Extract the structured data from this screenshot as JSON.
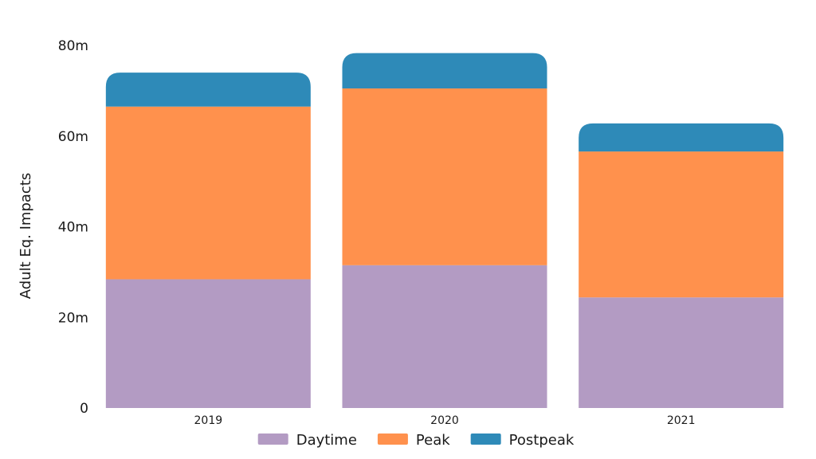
{
  "chart_data": {
    "type": "bar",
    "stacked": true,
    "categories": [
      "2019",
      "2020",
      "2021"
    ],
    "series": [
      {
        "name": "Daytime",
        "color": "#b39bc3",
        "values": [
          28.4,
          31.5,
          24.4
        ]
      },
      {
        "name": "Peak",
        "color": "#ff914d",
        "values": [
          38.1,
          39.0,
          32.2
        ]
      },
      {
        "name": "Postpeak",
        "color": "#2e8ab8",
        "values": [
          7.5,
          7.8,
          6.2
        ]
      }
    ],
    "ylabel": "Adult Eq. Impacts",
    "ylim": [
      0,
      80
    ],
    "yticks": [
      {
        "value": 0,
        "label": "0"
      },
      {
        "value": 20,
        "label": "20m"
      },
      {
        "value": 40,
        "label": "40m"
      },
      {
        "value": 60,
        "label": "60m"
      },
      {
        "value": 80,
        "label": "80m"
      }
    ],
    "grid": false,
    "legend_position": "bottom"
  }
}
